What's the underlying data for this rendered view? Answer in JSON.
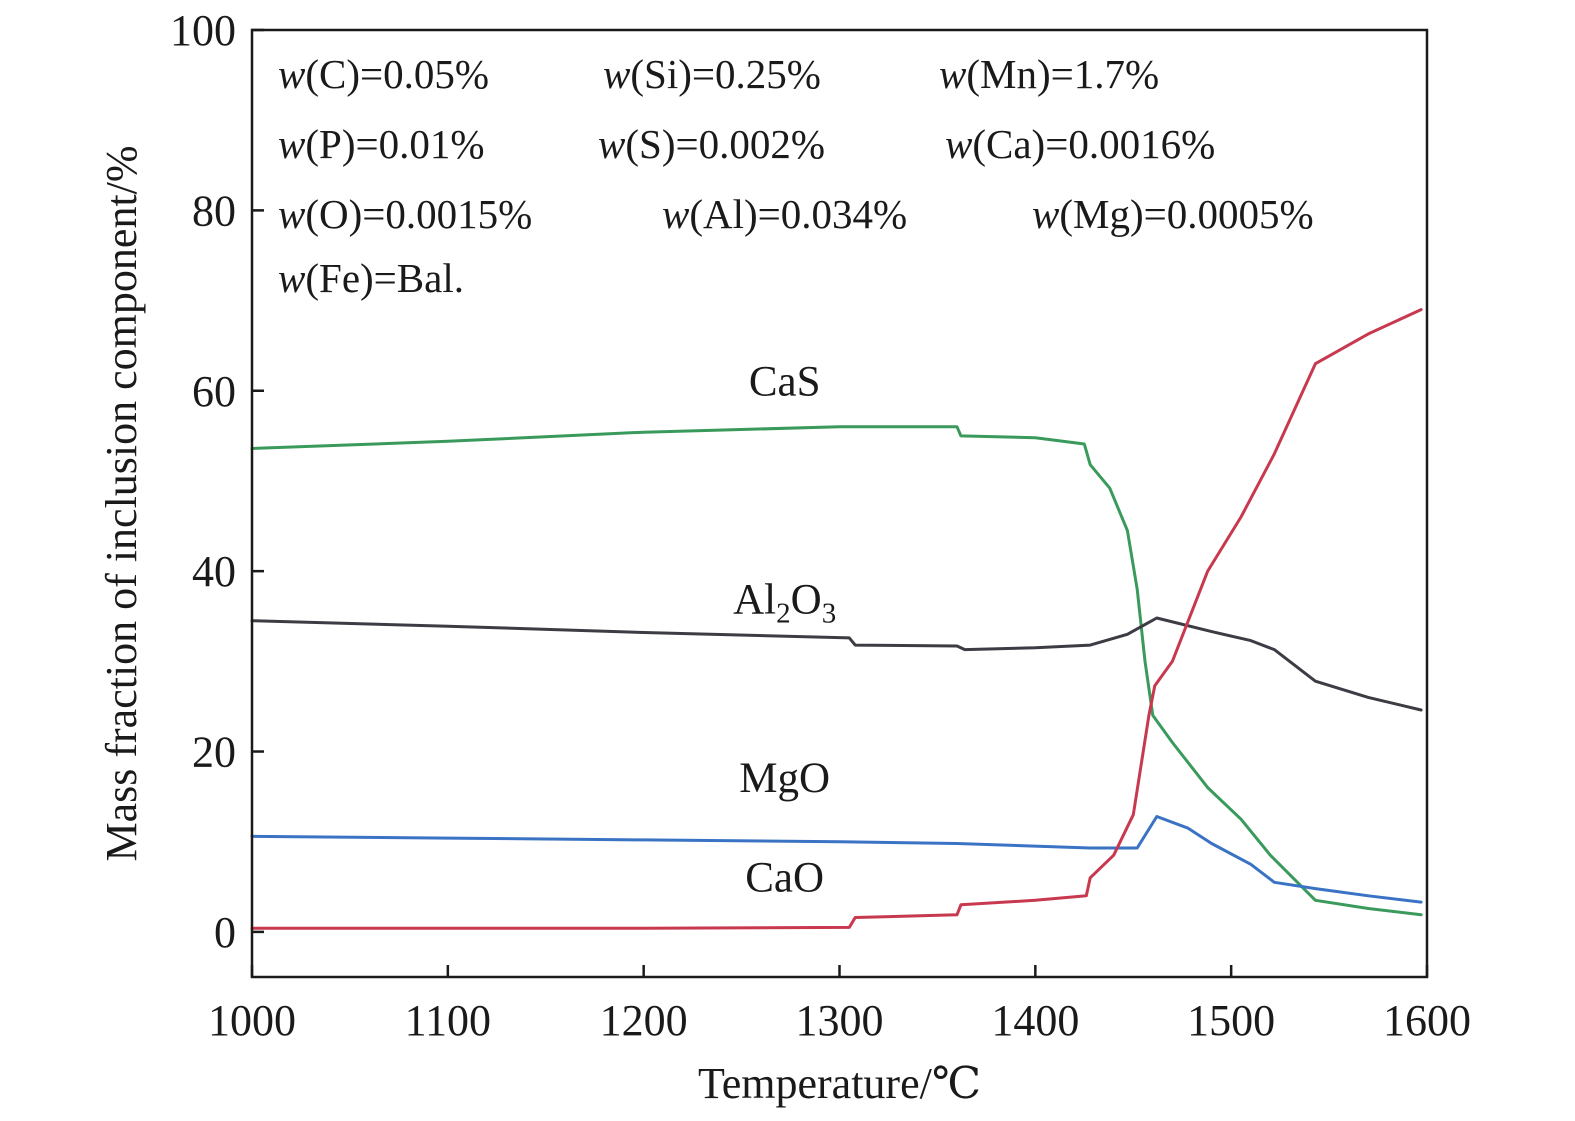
{
  "chart_data": {
    "type": "line",
    "xlabel": "Temperature/℃",
    "ylabel": "Mass fraction of inclusion component/%",
    "xlim": [
      1000,
      1600
    ],
    "ylim": [
      -5,
      100
    ],
    "xticks": [
      1000,
      1100,
      1200,
      1300,
      1400,
      1500,
      1600
    ],
    "yticks": [
      0,
      20,
      40,
      60,
      80,
      100
    ],
    "grid": false,
    "legend": "none",
    "composition": [
      [
        {
          "sym": "C",
          "val": "0.05%"
        },
        {
          "sym": "Si",
          "val": "0.25%"
        },
        {
          "sym": "Mn",
          "val": "1.7%"
        }
      ],
      [
        {
          "sym": "P",
          "val": "0.01%"
        },
        {
          "sym": "S",
          "val": "0.002%"
        },
        {
          "sym": "Ca",
          "val": "0.0016%"
        }
      ],
      [
        {
          "sym": "O",
          "val": "0.0015%"
        },
        {
          "sym": "Al",
          "val": "0.034%"
        },
        {
          "sym": "Mg",
          "val": "0.0005%"
        }
      ],
      [
        {
          "sym": "Fe",
          "val": "Bal."
        }
      ]
    ],
    "series": [
      {
        "name": "CaS",
        "color": "#3a9a5c",
        "label_at": [
          1272,
          59.5
        ],
        "points": [
          [
            1000,
            53.6
          ],
          [
            1100,
            54.4
          ],
          [
            1200,
            55.4
          ],
          [
            1300,
            56.0
          ],
          [
            1360,
            56.0
          ],
          [
            1362,
            55.0
          ],
          [
            1400,
            54.8
          ],
          [
            1425,
            54.1
          ],
          [
            1428,
            51.8
          ],
          [
            1438,
            49.2
          ],
          [
            1447,
            44.5
          ],
          [
            1452,
            38.0
          ],
          [
            1456,
            30.0
          ],
          [
            1460,
            24.0
          ],
          [
            1470,
            21.0
          ],
          [
            1488,
            16.0
          ],
          [
            1505,
            12.5
          ],
          [
            1520,
            8.5
          ],
          [
            1543,
            3.5
          ],
          [
            1570,
            2.6
          ],
          [
            1597,
            1.9
          ]
        ]
      },
      {
        "name": "Al₂O₃",
        "color": "#3c3c44",
        "label_at": [
          1272,
          35.3
        ],
        "points": [
          [
            1000,
            34.5
          ],
          [
            1100,
            33.9
          ],
          [
            1200,
            33.2
          ],
          [
            1305,
            32.6
          ],
          [
            1308,
            31.8
          ],
          [
            1360,
            31.7
          ],
          [
            1364,
            31.3
          ],
          [
            1400,
            31.5
          ],
          [
            1428,
            31.8
          ],
          [
            1447,
            33.0
          ],
          [
            1462,
            34.8
          ],
          [
            1490,
            33.3
          ],
          [
            1510,
            32.3
          ],
          [
            1522,
            31.3
          ],
          [
            1543,
            27.8
          ],
          [
            1570,
            26.0
          ],
          [
            1597,
            24.6
          ]
        ]
      },
      {
        "name": "MgO",
        "color": "#3a73c4",
        "label_at": [
          1272,
          15.5
        ],
        "points": [
          [
            1000,
            10.6
          ],
          [
            1100,
            10.4
          ],
          [
            1200,
            10.2
          ],
          [
            1300,
            10.0
          ],
          [
            1360,
            9.8
          ],
          [
            1428,
            9.3
          ],
          [
            1452,
            9.3
          ],
          [
            1462,
            12.8
          ],
          [
            1478,
            11.5
          ],
          [
            1490,
            9.8
          ],
          [
            1510,
            7.5
          ],
          [
            1522,
            5.5
          ],
          [
            1543,
            4.8
          ],
          [
            1570,
            4.0
          ],
          [
            1597,
            3.3
          ]
        ]
      },
      {
        "name": "CaO",
        "color": "#c8384f",
        "label_at": [
          1272,
          4.5
        ],
        "points": [
          [
            1000,
            0.4
          ],
          [
            1100,
            0.4
          ],
          [
            1200,
            0.4
          ],
          [
            1305,
            0.5
          ],
          [
            1308,
            1.6
          ],
          [
            1360,
            1.9
          ],
          [
            1362,
            3.0
          ],
          [
            1400,
            3.5
          ],
          [
            1426,
            4.0
          ],
          [
            1428,
            6.0
          ],
          [
            1440,
            8.5
          ],
          [
            1450,
            13.0
          ],
          [
            1458,
            24.0
          ],
          [
            1461,
            27.3
          ],
          [
            1470,
            30.0
          ],
          [
            1488,
            40.0
          ],
          [
            1505,
            46.0
          ],
          [
            1522,
            53.0
          ],
          [
            1543,
            63.0
          ],
          [
            1570,
            66.3
          ],
          [
            1597,
            69.0
          ]
        ]
      }
    ]
  }
}
